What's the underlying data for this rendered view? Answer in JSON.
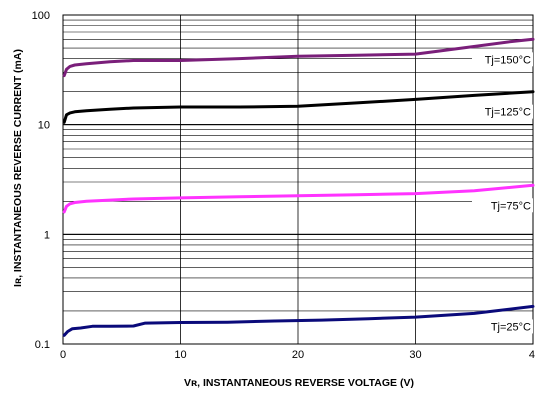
{
  "chart_data": {
    "type": "line",
    "title": "",
    "xlabel": "Vʀ, INSTANTANEOUS REVERSE VOLTAGE (V)",
    "ylabel": "Iʀ, INSTANTANEOUS REVERSE CURRENT (mA)",
    "x_scale": "linear",
    "y_scale": "log",
    "xlim": [
      0,
      40
    ],
    "ylim": [
      0.1,
      100
    ],
    "x_ticks": [
      "0",
      "10",
      "20",
      "30",
      "4"
    ],
    "y_ticks": [
      "0.1",
      "1",
      "10",
      "100"
    ],
    "grid": true,
    "legend": "labels placed at right end of each curve",
    "series": [
      {
        "name": "Tj=150°C",
        "color": "#7a1f7a",
        "x": [
          0.1,
          0.3,
          0.6,
          1,
          2,
          4,
          6,
          10,
          15,
          20,
          25,
          30,
          34,
          38,
          40
        ],
        "y": [
          28,
          32,
          34,
          35,
          36,
          37.5,
          38.5,
          38.5,
          40,
          42,
          43,
          44,
          50,
          57,
          60
        ]
      },
      {
        "name": "Tj=125°C",
        "color": "#000000",
        "x": [
          0.1,
          0.3,
          0.6,
          1,
          2,
          4,
          6,
          10,
          15,
          20,
          25,
          30,
          35,
          40
        ],
        "y": [
          10.5,
          12.3,
          12.8,
          13.1,
          13.4,
          13.8,
          14.2,
          14.5,
          14.5,
          14.7,
          15.8,
          17,
          18.5,
          20
        ]
      },
      {
        "name": "Tj=75°C",
        "color": "#ff33ff",
        "x": [
          0.1,
          0.3,
          0.6,
          1,
          2,
          4,
          6,
          10,
          15,
          20,
          25,
          30,
          35,
          40
        ],
        "y": [
          1.6,
          1.8,
          1.9,
          1.95,
          2.0,
          2.05,
          2.1,
          2.15,
          2.2,
          2.25,
          2.3,
          2.35,
          2.5,
          2.8
        ]
      },
      {
        "name": "Tj=25°C",
        "color": "#0a0a7a",
        "x": [
          0.1,
          0.4,
          0.8,
          1.5,
          2.5,
          4,
          6,
          7,
          10,
          14,
          18,
          22,
          26,
          30,
          35,
          40
        ],
        "y": [
          0.12,
          0.13,
          0.138,
          0.14,
          0.145,
          0.145,
          0.146,
          0.155,
          0.157,
          0.158,
          0.162,
          0.165,
          0.17,
          0.176,
          0.19,
          0.22
        ]
      }
    ]
  }
}
